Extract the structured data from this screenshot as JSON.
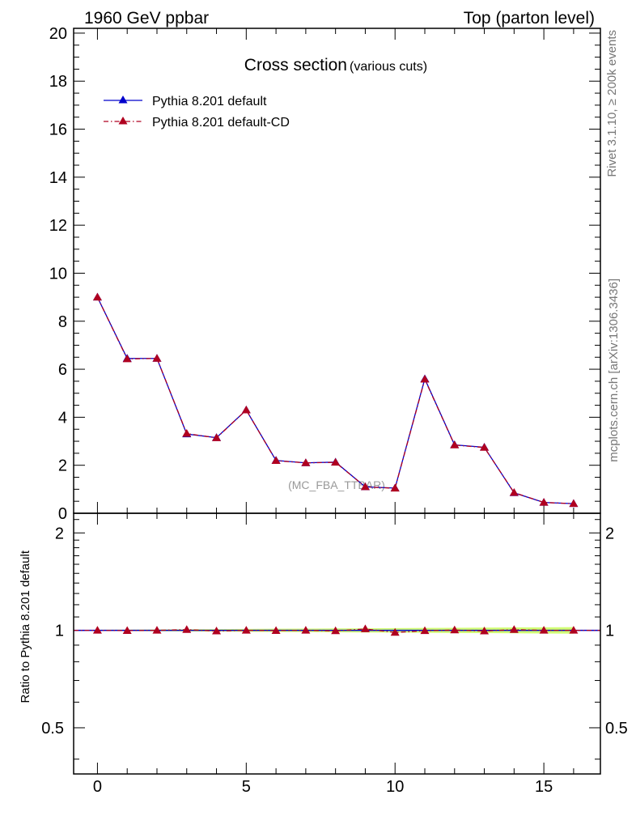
{
  "header": {
    "left": "1960 GeV ppbar",
    "right": "Top (parton level)"
  },
  "side_labels": {
    "rivet": "Rivet 3.1.10, ≥ 200k events",
    "mcplots": "mcplots.cern.ch [arXiv:1306.3436]"
  },
  "chart_data": [
    {
      "type": "line",
      "title": "Cross section",
      "subtitle": "(various cuts)",
      "annotation": "(MC_FBA_TTBAR)",
      "xlabel": "",
      "ylabel": "",
      "xlim": [
        -0.8,
        16.9
      ],
      "ylim": [
        0,
        20.2
      ],
      "yticks": [
        0,
        2,
        4,
        6,
        8,
        10,
        12,
        14,
        16,
        18,
        20
      ],
      "legend_position": "top-left",
      "x": [
        0,
        1,
        2,
        3,
        4,
        5,
        6,
        7,
        8,
        9,
        10,
        11,
        12,
        13,
        14,
        15,
        16
      ],
      "series": [
        {
          "name": "Pythia 8.201 default",
          "color": "#0000cc",
          "style": "solid",
          "marker": "triangle",
          "values": [
            9.0,
            6.45,
            6.45,
            3.3,
            3.15,
            4.3,
            2.2,
            2.1,
            2.13,
            1.1,
            1.05,
            5.6,
            2.85,
            2.75,
            0.85,
            0.45,
            0.4
          ]
        },
        {
          "name": "Pythia 8.201 default-CD",
          "color": "#b00020",
          "style": "dash-dot",
          "marker": "triangle",
          "values": [
            9.0,
            6.43,
            6.45,
            3.32,
            3.14,
            4.3,
            2.19,
            2.1,
            2.12,
            1.1,
            1.04,
            5.58,
            2.84,
            2.74,
            0.86,
            0.45,
            0.4
          ]
        }
      ]
    },
    {
      "type": "line",
      "title": "",
      "xlabel": "",
      "ylabel": "Ratio to Pythia 8.201 default",
      "xlim": [
        -0.8,
        16.9
      ],
      "ylim": [
        0.36,
        2.3
      ],
      "yscale": "log",
      "yticks": [
        0.5,
        1,
        2
      ],
      "xticks": [
        0,
        5,
        10,
        15
      ],
      "x": [
        0,
        1,
        2,
        3,
        4,
        5,
        6,
        7,
        8,
        9,
        10,
        11,
        12,
        13,
        14,
        15,
        16
      ],
      "band_color": "#ccff66",
      "series": [
        {
          "name": "Pythia 8.201 default",
          "color": "#0000cc",
          "values": [
            1,
            1,
            1,
            1,
            1,
            1,
            1,
            1,
            1,
            1,
            1,
            1,
            1,
            1,
            1,
            1,
            1
          ]
        },
        {
          "name": "Pythia 8.201 default-CD",
          "color": "#b00020",
          "values": [
            1.0,
            0.998,
            1.0,
            1.005,
            0.995,
            1.0,
            0.998,
            1.0,
            0.996,
            1.01,
            0.985,
            0.997,
            1.002,
            0.995,
            1.005,
            1.0,
            1.0
          ]
        }
      ]
    }
  ]
}
